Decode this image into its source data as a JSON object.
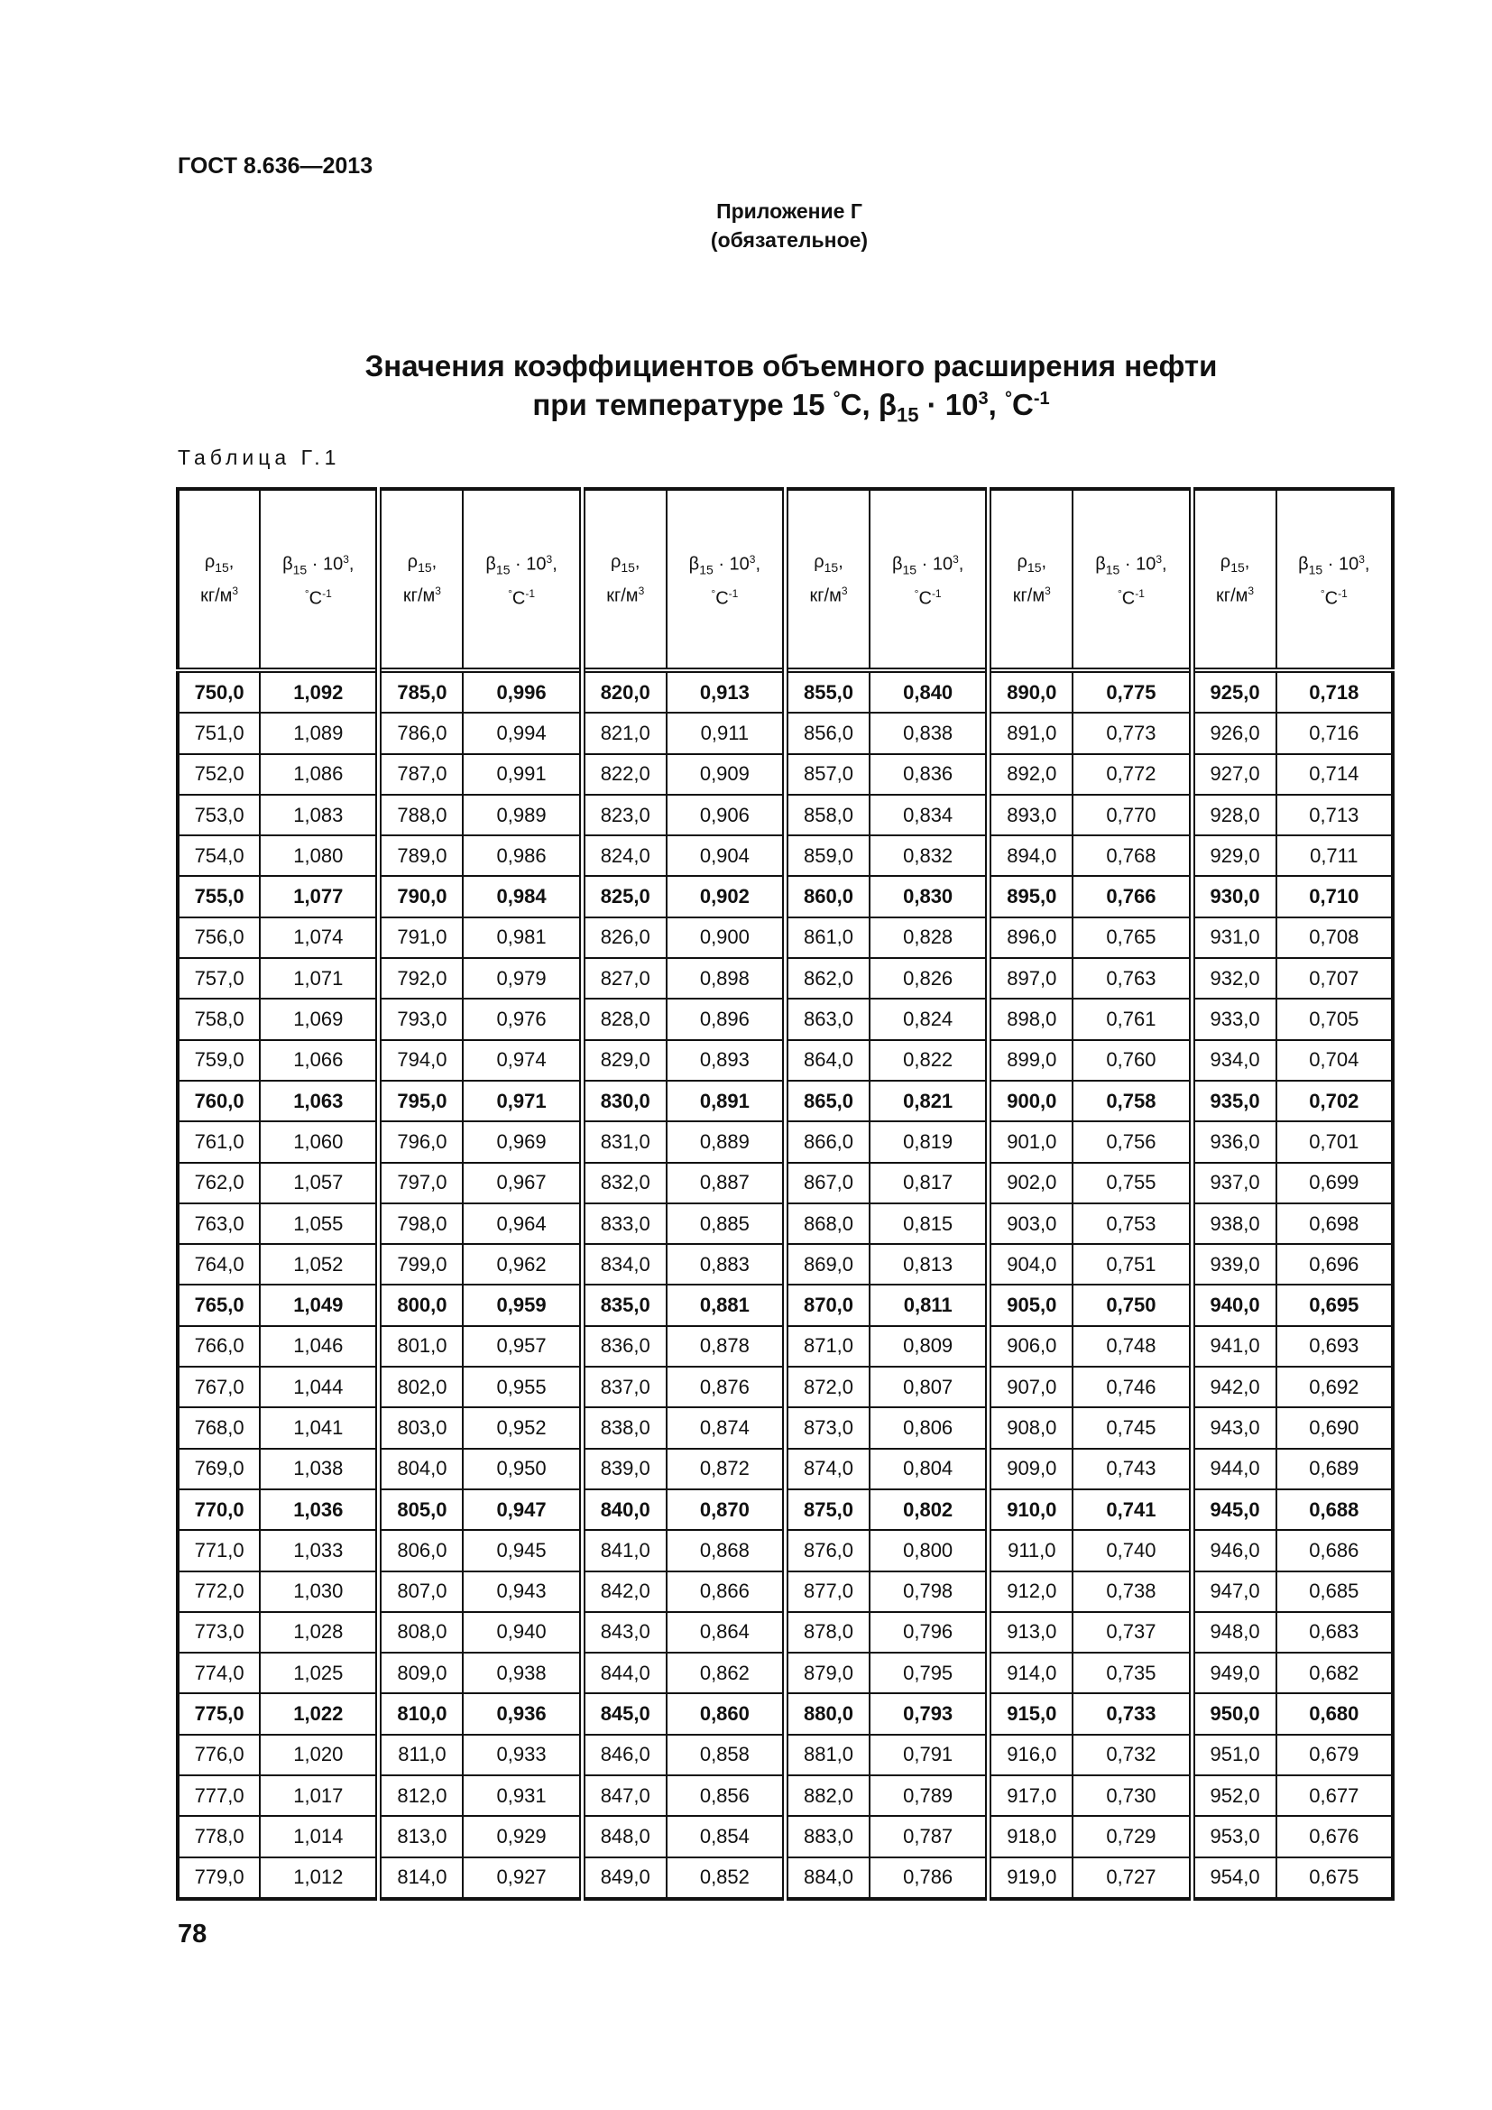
{
  "header": {
    "doc_code": "ГОСТ 8.636—2013"
  },
  "appendix": {
    "label": "Приложение Г",
    "status": "(обязательное)"
  },
  "title": {
    "line1": "Значения коэффициентов объемного расширения нефти",
    "line2_prefix": "при температуре 15 ",
    "deg1": "°",
    "c1": "С, β",
    "sub15": "15",
    "dot10": " · 10",
    "sup3": "3",
    "comma": ", ",
    "deg2": "°",
    "c2": "С",
    "sup_minus1": "-1"
  },
  "table_label": "Таблица Г.1",
  "table": {
    "header": {
      "rho_symbol": "ρ",
      "rho_sub": "15",
      "rho_comma": ",",
      "rho_unit": "кг/м",
      "rho_unit_sup": "3",
      "beta_symbol": "β",
      "beta_sub": "15",
      "beta_mult": " · 10",
      "beta_sup": "3",
      "beta_comma": ",",
      "beta_unit_deg": "°",
      "beta_unit": "С",
      "beta_unit_sup": "-1"
    },
    "rows": [
      {
        "bold": true,
        "cells": [
          "750,0",
          "1,092",
          "785,0",
          "0,996",
          "820,0",
          "0,913",
          "855,0",
          "0,840",
          "890,0",
          "0,775",
          "925,0",
          "0,718"
        ]
      },
      {
        "bold": false,
        "cells": [
          "751,0",
          "1,089",
          "786,0",
          "0,994",
          "821,0",
          "0,911",
          "856,0",
          "0,838",
          "891,0",
          "0,773",
          "926,0",
          "0,716"
        ]
      },
      {
        "bold": false,
        "cells": [
          "752,0",
          "1,086",
          "787,0",
          "0,991",
          "822,0",
          "0,909",
          "857,0",
          "0,836",
          "892,0",
          "0,772",
          "927,0",
          "0,714"
        ]
      },
      {
        "bold": false,
        "cells": [
          "753,0",
          "1,083",
          "788,0",
          "0,989",
          "823,0",
          "0,906",
          "858,0",
          "0,834",
          "893,0",
          "0,770",
          "928,0",
          "0,713"
        ]
      },
      {
        "bold": false,
        "cells": [
          "754,0",
          "1,080",
          "789,0",
          "0,986",
          "824,0",
          "0,904",
          "859,0",
          "0,832",
          "894,0",
          "0,768",
          "929,0",
          "0,711"
        ]
      },
      {
        "bold": true,
        "cells": [
          "755,0",
          "1,077",
          "790,0",
          "0,984",
          "825,0",
          "0,902",
          "860,0",
          "0,830",
          "895,0",
          "0,766",
          "930,0",
          "0,710"
        ]
      },
      {
        "bold": false,
        "cells": [
          "756,0",
          "1,074",
          "791,0",
          "0,981",
          "826,0",
          "0,900",
          "861,0",
          "0,828",
          "896,0",
          "0,765",
          "931,0",
          "0,708"
        ]
      },
      {
        "bold": false,
        "cells": [
          "757,0",
          "1,071",
          "792,0",
          "0,979",
          "827,0",
          "0,898",
          "862,0",
          "0,826",
          "897,0",
          "0,763",
          "932,0",
          "0,707"
        ]
      },
      {
        "bold": false,
        "cells": [
          "758,0",
          "1,069",
          "793,0",
          "0,976",
          "828,0",
          "0,896",
          "863,0",
          "0,824",
          "898,0",
          "0,761",
          "933,0",
          "0,705"
        ]
      },
      {
        "bold": false,
        "cells": [
          "759,0",
          "1,066",
          "794,0",
          "0,974",
          "829,0",
          "0,893",
          "864,0",
          "0,822",
          "899,0",
          "0,760",
          "934,0",
          "0,704"
        ]
      },
      {
        "bold": true,
        "cells": [
          "760,0",
          "1,063",
          "795,0",
          "0,971",
          "830,0",
          "0,891",
          "865,0",
          "0,821",
          "900,0",
          "0,758",
          "935,0",
          "0,702"
        ]
      },
      {
        "bold": false,
        "cells": [
          "761,0",
          "1,060",
          "796,0",
          "0,969",
          "831,0",
          "0,889",
          "866,0",
          "0,819",
          "901,0",
          "0,756",
          "936,0",
          "0,701"
        ]
      },
      {
        "bold": false,
        "cells": [
          "762,0",
          "1,057",
          "797,0",
          "0,967",
          "832,0",
          "0,887",
          "867,0",
          "0,817",
          "902,0",
          "0,755",
          "937,0",
          "0,699"
        ]
      },
      {
        "bold": false,
        "cells": [
          "763,0",
          "1,055",
          "798,0",
          "0,964",
          "833,0",
          "0,885",
          "868,0",
          "0,815",
          "903,0",
          "0,753",
          "938,0",
          "0,698"
        ]
      },
      {
        "bold": false,
        "cells": [
          "764,0",
          "1,052",
          "799,0",
          "0,962",
          "834,0",
          "0,883",
          "869,0",
          "0,813",
          "904,0",
          "0,751",
          "939,0",
          "0,696"
        ]
      },
      {
        "bold": true,
        "cells": [
          "765,0",
          "1,049",
          "800,0",
          "0,959",
          "835,0",
          "0,881",
          "870,0",
          "0,811",
          "905,0",
          "0,750",
          "940,0",
          "0,695"
        ]
      },
      {
        "bold": false,
        "cells": [
          "766,0",
          "1,046",
          "801,0",
          "0,957",
          "836,0",
          "0,878",
          "871,0",
          "0,809",
          "906,0",
          "0,748",
          "941,0",
          "0,693"
        ]
      },
      {
        "bold": false,
        "cells": [
          "767,0",
          "1,044",
          "802,0",
          "0,955",
          "837,0",
          "0,876",
          "872,0",
          "0,807",
          "907,0",
          "0,746",
          "942,0",
          "0,692"
        ]
      },
      {
        "bold": false,
        "cells": [
          "768,0",
          "1,041",
          "803,0",
          "0,952",
          "838,0",
          "0,874",
          "873,0",
          "0,806",
          "908,0",
          "0,745",
          "943,0",
          "0,690"
        ]
      },
      {
        "bold": false,
        "cells": [
          "769,0",
          "1,038",
          "804,0",
          "0,950",
          "839,0",
          "0,872",
          "874,0",
          "0,804",
          "909,0",
          "0,743",
          "944,0",
          "0,689"
        ]
      },
      {
        "bold": true,
        "cells": [
          "770,0",
          "1,036",
          "805,0",
          "0,947",
          "840,0",
          "0,870",
          "875,0",
          "0,802",
          "910,0",
          "0,741",
          "945,0",
          "0,688"
        ]
      },
      {
        "bold": false,
        "cells": [
          "771,0",
          "1,033",
          "806,0",
          "0,945",
          "841,0",
          "0,868",
          "876,0",
          "0,800",
          "911,0",
          "0,740",
          "946,0",
          "0,686"
        ]
      },
      {
        "bold": false,
        "cells": [
          "772,0",
          "1,030",
          "807,0",
          "0,943",
          "842,0",
          "0,866",
          "877,0",
          "0,798",
          "912,0",
          "0,738",
          "947,0",
          "0,685"
        ]
      },
      {
        "bold": false,
        "cells": [
          "773,0",
          "1,028",
          "808,0",
          "0,940",
          "843,0",
          "0,864",
          "878,0",
          "0,796",
          "913,0",
          "0,737",
          "948,0",
          "0,683"
        ]
      },
      {
        "bold": false,
        "cells": [
          "774,0",
          "1,025",
          "809,0",
          "0,938",
          "844,0",
          "0,862",
          "879,0",
          "0,795",
          "914,0",
          "0,735",
          "949,0",
          "0,682"
        ]
      },
      {
        "bold": true,
        "cells": [
          "775,0",
          "1,022",
          "810,0",
          "0,936",
          "845,0",
          "0,860",
          "880,0",
          "0,793",
          "915,0",
          "0,733",
          "950,0",
          "0,680"
        ]
      },
      {
        "bold": false,
        "cells": [
          "776,0",
          "1,020",
          "811,0",
          "0,933",
          "846,0",
          "0,858",
          "881,0",
          "0,791",
          "916,0",
          "0,732",
          "951,0",
          "0,679"
        ]
      },
      {
        "bold": false,
        "cells": [
          "777,0",
          "1,017",
          "812,0",
          "0,931",
          "847,0",
          "0,856",
          "882,0",
          "0,789",
          "917,0",
          "0,730",
          "952,0",
          "0,677"
        ]
      },
      {
        "bold": false,
        "cells": [
          "778,0",
          "1,014",
          "813,0",
          "0,929",
          "848,0",
          "0,854",
          "883,0",
          "0,787",
          "918,0",
          "0,729",
          "953,0",
          "0,676"
        ]
      },
      {
        "bold": false,
        "cells": [
          "779,0",
          "1,012",
          "814,0",
          "0,927",
          "849,0",
          "0,852",
          "884,0",
          "0,786",
          "919,0",
          "0,727",
          "954,0",
          "0,675"
        ]
      }
    ]
  },
  "page_number": "78"
}
